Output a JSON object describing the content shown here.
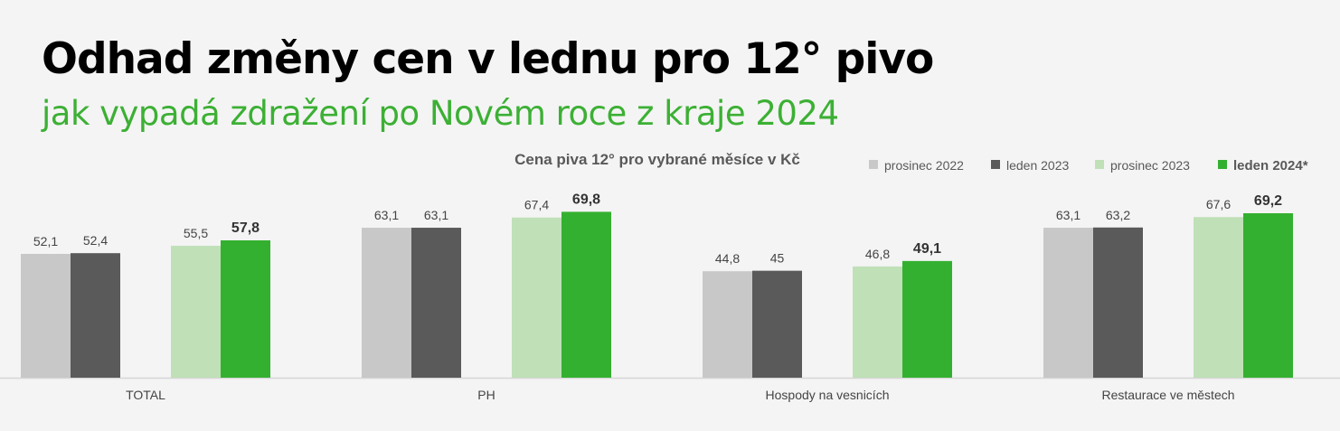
{
  "header": {
    "title": "Odhad změny cen v lednu pro 12° pivo",
    "subtitle": "jak vypadá zdražení po Novém roce z kraje 2024"
  },
  "chart_data": {
    "type": "bar",
    "title": "Cena piva 12° pro vybrané měsíce v Kč",
    "xlabel": "",
    "ylabel": "",
    "ylim": [
      0,
      70
    ],
    "grid": false,
    "legend_position": "top-right",
    "categories": [
      "TOTAL",
      "PH",
      "Hospody na vesnicích",
      "Restaurace ve městech"
    ],
    "series": [
      {
        "name": "prosinec 2022",
        "color": "#c8c8c8",
        "values": [
          52.1,
          63.1,
          44.8,
          63.1
        ],
        "labels": [
          "52,1",
          "63,1",
          "44,8",
          "63,1"
        ],
        "bold": false
      },
      {
        "name": "leden 2023",
        "color": "#5a5a5a",
        "values": [
          52.4,
          63.1,
          45,
          63.2
        ],
        "labels": [
          "52,4",
          "63,1",
          "45",
          "63,2"
        ],
        "bold": false
      },
      {
        "name": "prosinec 2023",
        "color": "#c0e0b8",
        "values": [
          55.5,
          67.4,
          46.8,
          67.6
        ],
        "labels": [
          "55,5",
          "67,4",
          "46,8",
          "67,6"
        ],
        "bold": false
      },
      {
        "name": "leden 2024*",
        "color": "#34b030",
        "values": [
          57.8,
          69.8,
          49.1,
          69.2
        ],
        "labels": [
          "57,8",
          "69,8",
          "49,1",
          "69,2"
        ],
        "bold": true
      }
    ]
  }
}
